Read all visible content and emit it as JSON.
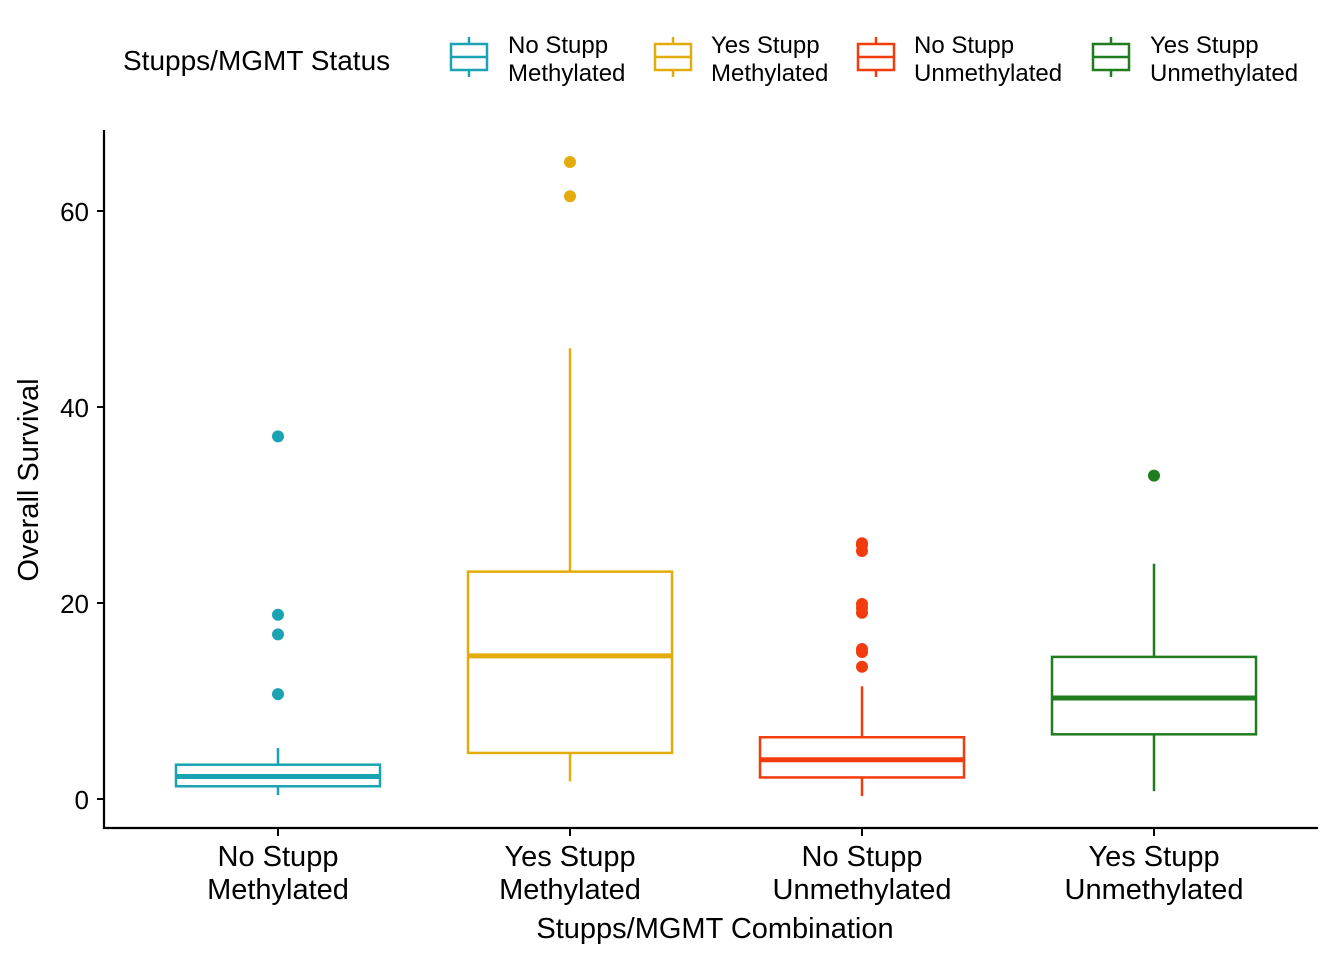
{
  "chart_data": {
    "type": "box",
    "title": "",
    "xlabel": "Stupps/MGMT Combination",
    "ylabel": "Overall Survival",
    "ylim": [
      -3,
      68
    ],
    "yticks": [
      0,
      20,
      40,
      60
    ],
    "grid": false,
    "legend": {
      "title": "Stupps/MGMT Status",
      "position": "top",
      "entries": [
        {
          "line1": "No Stupp",
          "line2": "Methylated",
          "color": "#1aa3b3"
        },
        {
          "line1": "Yes Stupp",
          "line2": "Methylated",
          "color": "#e3ab0b"
        },
        {
          "line1": "No Stupp",
          "line2": "Unmethylated",
          "color": "#f23c0d"
        },
        {
          "line1": "Yes Stupp",
          "line2": "Unmethylated",
          "color": "#1f7d1f"
        }
      ]
    },
    "categories": [
      {
        "line1": "No Stupp",
        "line2": "Methylated"
      },
      {
        "line1": "Yes Stupp",
        "line2": "Methylated"
      },
      {
        "line1": "No Stupp",
        "line2": "Unmethylated"
      },
      {
        "line1": "Yes Stupp",
        "line2": "Unmethylated"
      }
    ],
    "boxes": [
      {
        "color": "#1aa3b3",
        "whisker_low": 0.4,
        "q1": 1.3,
        "median": 2.3,
        "q3": 3.5,
        "whisker_high": 5.2,
        "outliers": [
          10.7,
          16.8,
          18.8,
          37.0
        ]
      },
      {
        "color": "#e3ab0b",
        "whisker_low": 1.8,
        "q1": 4.7,
        "median": 14.6,
        "q3": 23.2,
        "whisker_high": 46.0,
        "outliers": [
          61.5,
          65.0
        ]
      },
      {
        "color": "#f23c0d",
        "whisker_low": 0.3,
        "q1": 2.2,
        "median": 4.0,
        "q3": 6.3,
        "whisker_high": 11.5,
        "outliers": [
          13.5,
          15.0,
          15.3,
          19.0,
          19.5,
          19.9,
          25.3,
          25.9,
          26.1
        ]
      },
      {
        "color": "#1f7d1f",
        "whisker_low": 0.8,
        "q1": 6.6,
        "median": 10.3,
        "q3": 14.5,
        "whisker_high": 24.0,
        "outliers": [
          33.0
        ]
      }
    ]
  }
}
